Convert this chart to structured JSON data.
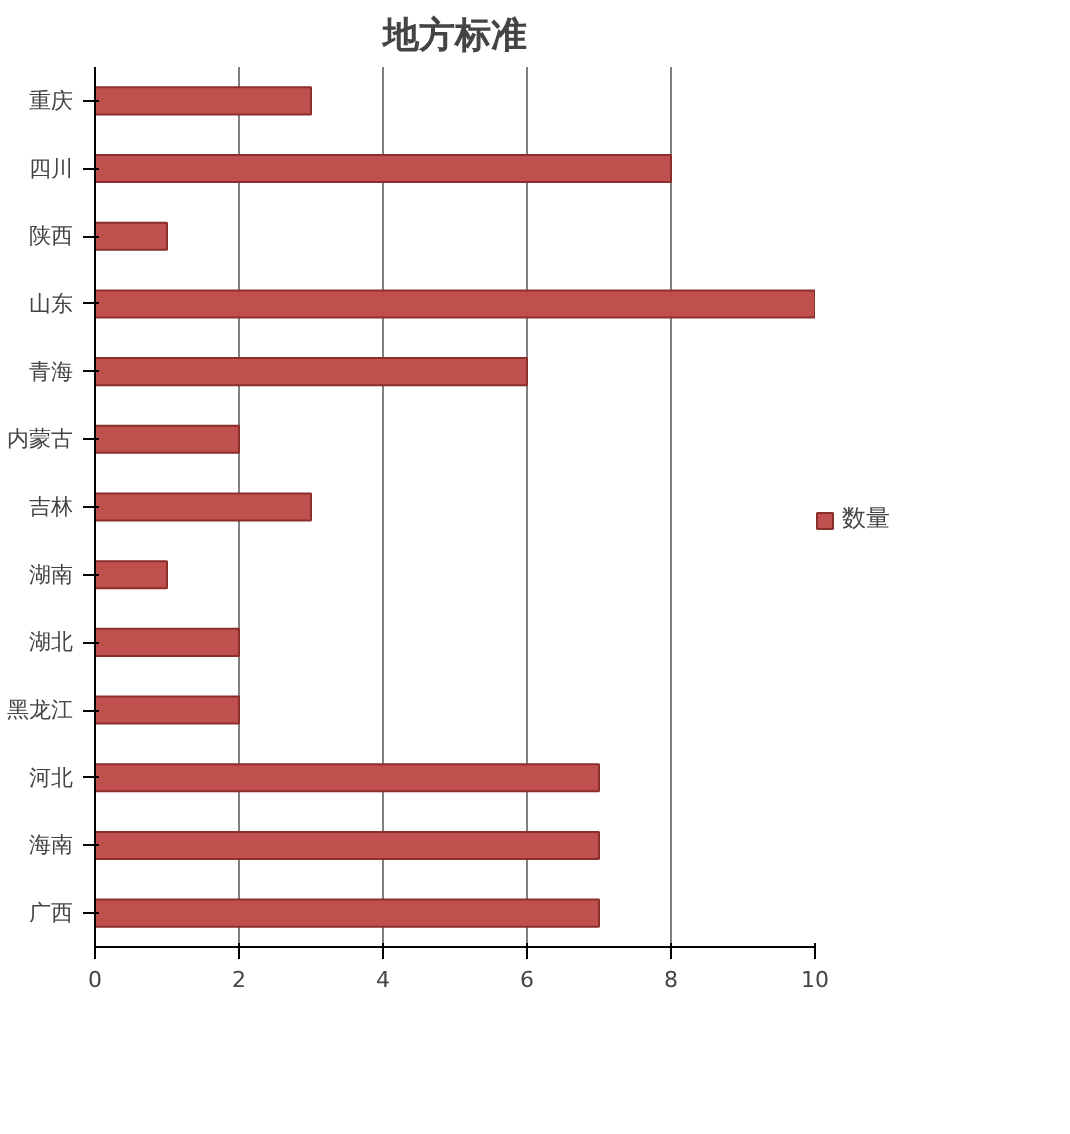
{
  "chart_data": {
    "type": "bar",
    "orientation": "horizontal",
    "title": "地方标准",
    "categories": [
      "重庆",
      "四川",
      "陕西",
      "山东",
      "青海",
      "内蒙古",
      "吉林",
      "湖南",
      "湖北",
      "黑龙江",
      "河北",
      "海南",
      "广西"
    ],
    "series": [
      {
        "name": "数量",
        "color": "#c0504d",
        "values": [
          3,
          8,
          1,
          10,
          6,
          2,
          3,
          1,
          2,
          2,
          7,
          7,
          7
        ]
      }
    ],
    "xlim": [
      0,
      10
    ],
    "xticks": [
      0,
      2,
      4,
      6,
      8,
      10
    ],
    "grid": "x",
    "legend": "right"
  }
}
